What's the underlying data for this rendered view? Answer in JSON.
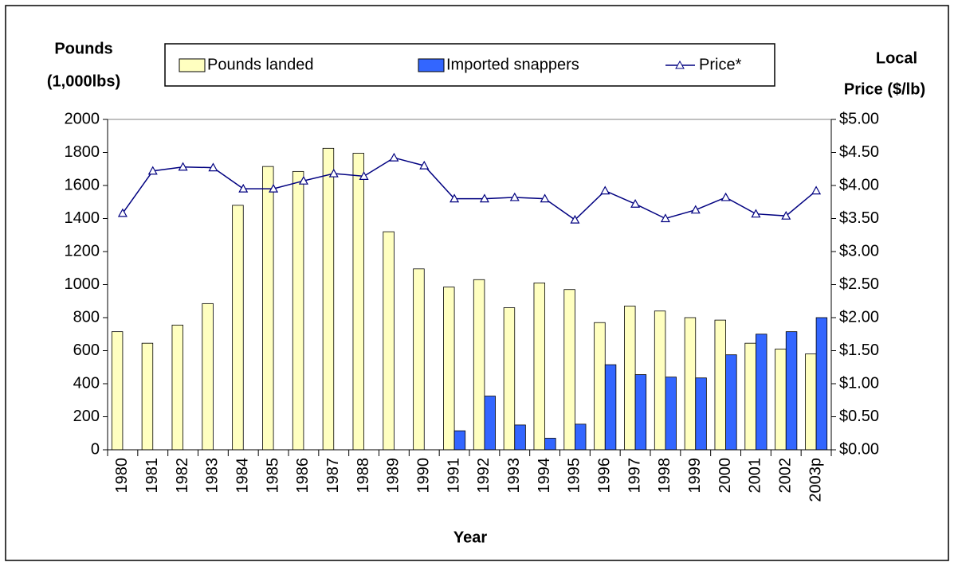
{
  "chart_data": {
    "type": "bar-line",
    "categories": [
      "1980",
      "1981",
      "1982",
      "1983",
      "1984",
      "1985",
      "1986",
      "1987",
      "1988",
      "1989",
      "1990",
      "1991",
      "1992",
      "1993",
      "1994",
      "1995",
      "1996",
      "1997",
      "1998",
      "1999",
      "2000",
      "2001",
      "2002",
      "2003p"
    ],
    "series": [
      {
        "name": "Pounds landed",
        "type": "bar",
        "color": "#ffffc0",
        "values": [
          715,
          645,
          755,
          885,
          1480,
          1715,
          1685,
          1825,
          1795,
          1320,
          1095,
          985,
          1030,
          860,
          1010,
          970,
          770,
          870,
          840,
          800,
          785,
          645,
          610,
          580
        ]
      },
      {
        "name": "Imported snappers",
        "type": "bar",
        "color": "#3366ff",
        "values": [
          null,
          null,
          null,
          null,
          null,
          null,
          null,
          null,
          null,
          null,
          null,
          115,
          325,
          150,
          70,
          155,
          515,
          455,
          440,
          435,
          575,
          700,
          715,
          800
        ]
      },
      {
        "name": "Price*",
        "type": "line",
        "axis": "y2",
        "color": "#000080",
        "values": [
          3.58,
          4.22,
          4.28,
          4.27,
          3.95,
          3.95,
          4.07,
          4.18,
          4.14,
          4.42,
          4.3,
          3.8,
          3.8,
          3.82,
          3.8,
          3.48,
          3.92,
          3.72,
          3.5,
          3.63,
          3.82,
          3.57,
          3.54,
          3.92
        ]
      }
    ],
    "xlabel": "Year",
    "ylabel": [
      "Pounds",
      "(1,000lbs)"
    ],
    "y2label": [
      "Local",
      "Price ($/lb)"
    ],
    "ylim": [
      0,
      2000
    ],
    "yticks": [
      0,
      200,
      400,
      600,
      800,
      1000,
      1200,
      1400,
      1600,
      1800,
      2000
    ],
    "y2lim": [
      0,
      5
    ],
    "y2ticks": [
      {
        "value": 0,
        "label": "$0.00"
      },
      {
        "value": 0.5,
        "label": "$0.50"
      },
      {
        "value": 1,
        "label": "$1.00"
      },
      {
        "value": 1.5,
        "label": "$1.50"
      },
      {
        "value": 2,
        "label": "$2.00"
      },
      {
        "value": 2.5,
        "label": "$2.50"
      },
      {
        "value": 3,
        "label": "$3.00"
      },
      {
        "value": 3.5,
        "label": "$3.50"
      },
      {
        "value": 4,
        "label": "$4.00"
      },
      {
        "value": 4.5,
        "label": "$4.50"
      },
      {
        "value": 5,
        "label": "$5.00"
      }
    ],
    "legend": "top"
  }
}
